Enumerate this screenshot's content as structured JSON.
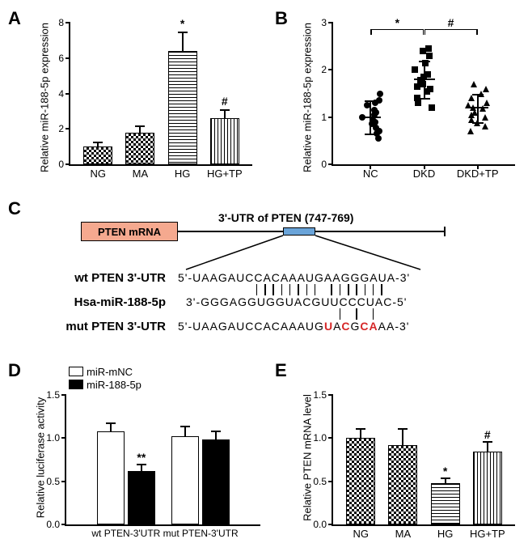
{
  "panelA": {
    "label": "A",
    "ylabel": "Relative miR-188-5p expression",
    "yticks": [
      0,
      2,
      4,
      6,
      8
    ],
    "ylim": [
      0,
      8
    ],
    "groups": [
      {
        "name": "NG",
        "value": 1.0,
        "err": 0.3,
        "pattern": "pattern-check",
        "sig": ""
      },
      {
        "name": "MA",
        "value": 1.8,
        "err": 0.4,
        "pattern": "pattern-check",
        "sig": ""
      },
      {
        "name": "HG",
        "value": 6.4,
        "err": 1.1,
        "pattern": "pattern-hstripe",
        "sig": "*"
      },
      {
        "name": "HG+TP",
        "value": 2.6,
        "err": 0.5,
        "pattern": "pattern-vstripe",
        "sig": "#"
      }
    ]
  },
  "panelB": {
    "label": "B",
    "ylabel": "Relative miR-188-5p expression",
    "yticks": [
      0,
      1,
      2,
      3
    ],
    "ylim": [
      0,
      3
    ],
    "groups": [
      {
        "name": "NC",
        "marker": "circle",
        "mean": 1.0,
        "err": 0.35
      },
      {
        "name": "DKD",
        "marker": "square",
        "mean": 1.8,
        "err": 0.4
      },
      {
        "name": "DKD+TP",
        "marker": "triangle",
        "mean": 1.2,
        "err": 0.3
      }
    ],
    "points": {
      "NC": [
        0.55,
        0.65,
        0.7,
        0.78,
        0.85,
        0.9,
        0.95,
        1.0,
        1.05,
        1.1,
        1.15,
        1.25,
        1.3,
        1.35,
        1.5
      ],
      "DKD": [
        1.2,
        1.3,
        1.4,
        1.55,
        1.6,
        1.65,
        1.7,
        1.78,
        1.85,
        1.9,
        2.0,
        2.15,
        2.3,
        2.4,
        2.45
      ],
      "DKD+TP": [
        0.7,
        0.8,
        0.88,
        0.95,
        1.0,
        1.05,
        1.1,
        1.18,
        1.2,
        1.25,
        1.3,
        1.4,
        1.5,
        1.6,
        1.7
      ]
    },
    "sig": [
      {
        "from": "NC",
        "to": "DKD",
        "label": "*"
      },
      {
        "from": "DKD",
        "to": "DKD+TP",
        "label": "#"
      }
    ]
  },
  "panelC": {
    "label": "C",
    "mrna_label": "PTEN mRNA",
    "utr_label": "3'-UTR of PTEN (747-769)",
    "wt_label": "wt PTEN 3'-UTR",
    "wt_seq": "5'-UAAGAUCCACAAAUGAAGGGAUA-3'",
    "mir_label": "Hsa-miR-188-5p",
    "mir_seq": "3'-GGGAGGUGGUACGUUCCCUAC-5'",
    "mut_label": "mut PTEN 3'-UTR",
    "mut_seq_prefix": "5'-UAAGAUCCACAAAUG",
    "mut_seq_hl": [
      "U",
      "A",
      "C",
      "G",
      "C",
      "A",
      "A"
    ],
    "mut_hl_red": [
      0,
      2,
      4,
      5
    ],
    "mut_seq_suffix": "A-3'",
    "mrna_color": "#f5a98f",
    "site_color": "#6aa4d9"
  },
  "panelD": {
    "label": "D",
    "ylabel": "Relative luciferase activity",
    "yticks": [
      0.0,
      0.5,
      1.0,
      1.5
    ],
    "ylim": [
      0,
      1.5
    ],
    "xgroups": [
      "wt PTEN-3'UTR",
      "mut PTEN-3'UTR"
    ],
    "legend": [
      {
        "name": "miR-mNC",
        "pattern": "pattern-white"
      },
      {
        "name": "miR-188-5p",
        "pattern": "pattern-black"
      }
    ],
    "data": [
      {
        "group": "wt PTEN-3'UTR",
        "series": "miR-mNC",
        "value": 1.08,
        "err": 0.1,
        "sig": ""
      },
      {
        "group": "wt PTEN-3'UTR",
        "series": "miR-188-5p",
        "value": 0.62,
        "err": 0.08,
        "sig": "**"
      },
      {
        "group": "mut PTEN-3'UTR",
        "series": "miR-mNC",
        "value": 1.02,
        "err": 0.12,
        "sig": ""
      },
      {
        "group": "mut PTEN-3'UTR",
        "series": "miR-188-5p",
        "value": 0.98,
        "err": 0.11,
        "sig": ""
      }
    ]
  },
  "panelE": {
    "label": "E",
    "ylabel": "Relative PTEN mRNA level",
    "yticks": [
      0.0,
      0.5,
      1.0,
      1.5
    ],
    "ylim": [
      0,
      1.5
    ],
    "groups": [
      {
        "name": "NG",
        "value": 1.0,
        "err": 0.12,
        "pattern": "pattern-check",
        "sig": ""
      },
      {
        "name": "MA",
        "value": 0.92,
        "err": 0.2,
        "pattern": "pattern-check",
        "sig": ""
      },
      {
        "name": "HG",
        "value": 0.48,
        "err": 0.06,
        "pattern": "pattern-hstripe",
        "sig": "*"
      },
      {
        "name": "HG+TP",
        "value": 0.84,
        "err": 0.13,
        "pattern": "pattern-vstripe",
        "sig": "#"
      }
    ]
  }
}
